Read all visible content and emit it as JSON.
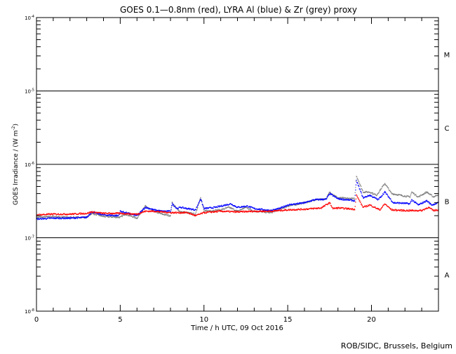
{
  "chart_data": {
    "type": "scatter",
    "title": "GOES 0.1—0.8nm (red), LYRA Al (blue) & Zr (grey) proxy",
    "xlabel": "Time / h UTC, 09 Oct 2016",
    "ylabel": "GOES Irradiance / (W m",
    "ylabel_sup": "-2",
    "ylabel_end": ")",
    "xlim": [
      0,
      24
    ],
    "ylim": [
      1e-08,
      0.0001
    ],
    "yscale": "log",
    "xticks": [
      0,
      5,
      10,
      15,
      20
    ],
    "xtick_labels": [
      "0",
      "5",
      "10",
      "15",
      "20"
    ],
    "yticks": [
      {
        "value": 0.0001,
        "base": "10",
        "exp": "-4"
      },
      {
        "value": 1e-05,
        "base": "10",
        "exp": "-5"
      },
      {
        "value": 1e-06,
        "base": "10",
        "exp": "-6"
      },
      {
        "value": 1e-07,
        "base": "10",
        "exp": "-7"
      },
      {
        "value": 1e-08,
        "base": "10",
        "exp": "-8"
      }
    ],
    "flare_classes": [
      {
        "label": "M",
        "value": 3.16e-05
      },
      {
        "label": "C",
        "value": 3.16e-06
      },
      {
        "label": "B",
        "value": 3.16e-07
      },
      {
        "label": "A",
        "value": 3.16e-08
      }
    ],
    "class_lines": [
      1e-05,
      1e-06,
      1e-07
    ],
    "credit": "ROB/SIDC, Brussels, Belgium",
    "series": [
      {
        "name": "Zr (grey)",
        "color": "#808080",
        "points": [
          [
            0,
            1.9e-07
          ],
          [
            1,
            1.95e-07
          ],
          [
            2,
            1.9e-07
          ],
          [
            3,
            1.9e-07
          ],
          [
            3.3,
            2.15e-07
          ],
          [
            4,
            1.95e-07
          ],
          [
            5,
            1.9e-07
          ],
          [
            5.3,
            2.1e-07
          ],
          [
            6,
            1.85e-07
          ],
          [
            6.5,
            2.7e-07
          ],
          [
            7,
            2.3e-07
          ],
          [
            7.5,
            2.1e-07
          ],
          [
            8,
            2e-07
          ],
          [
            8.1,
            3e-07
          ],
          [
            8.5,
            2.3e-07
          ],
          [
            9,
            2.2e-07
          ],
          [
            9.5,
            2.1e-07
          ],
          [
            9.8,
            3.6e-07
          ],
          [
            10,
            2.3e-07
          ],
          [
            11,
            2.4e-07
          ],
          [
            11.5,
            2.6e-07
          ],
          [
            12,
            2.3e-07
          ],
          [
            12.5,
            2.6e-07
          ],
          [
            13,
            2.3e-07
          ],
          [
            14,
            2.2e-07
          ],
          [
            15,
            2.7e-07
          ],
          [
            16,
            3e-07
          ],
          [
            16.7,
            3.3e-07
          ],
          [
            17.3,
            3.4e-07
          ],
          [
            17.5,
            4.2e-07
          ],
          [
            18,
            3.5e-07
          ],
          [
            19,
            3.4e-07
          ],
          [
            19.1,
            7e-07
          ],
          [
            19.5,
            4.2e-07
          ],
          [
            19.9,
            4.2e-07
          ],
          [
            20.3,
            3.8e-07
          ],
          [
            20.8,
            5.5e-07
          ],
          [
            21.2,
            4e-07
          ],
          [
            22,
            3.7e-07
          ],
          [
            22.3,
            3.6e-07
          ],
          [
            22.4,
            4.2e-07
          ],
          [
            22.8,
            3.6e-07
          ],
          [
            23.3,
            4.2e-07
          ],
          [
            23.7,
            3.6e-07
          ],
          [
            24,
            3.9e-07
          ]
        ]
      },
      {
        "name": "Al (blue)",
        "color": "#0000ff",
        "points": [
          [
            0,
            1.8e-07
          ],
          [
            1,
            1.85e-07
          ],
          [
            2,
            1.85e-07
          ],
          [
            3,
            1.9e-07
          ],
          [
            3.3,
            2.25e-07
          ],
          [
            4,
            2.05e-07
          ],
          [
            4.9,
            2e-07
          ],
          [
            5,
            2.3e-07
          ],
          [
            6,
            2e-07
          ],
          [
            6.5,
            2.6e-07
          ],
          [
            7,
            2.4e-07
          ],
          [
            7.5,
            2.3e-07
          ],
          [
            8,
            2.3e-07
          ],
          [
            8.1,
            2.9e-07
          ],
          [
            8.4,
            2.5e-07
          ],
          [
            8.6,
            2.6e-07
          ],
          [
            9,
            2.5e-07
          ],
          [
            9.5,
            2.4e-07
          ],
          [
            9.8,
            3.4e-07
          ],
          [
            10,
            2.5e-07
          ],
          [
            10.7,
            2.6e-07
          ],
          [
            11.3,
            2.8e-07
          ],
          [
            11.6,
            2.9e-07
          ],
          [
            12,
            2.6e-07
          ],
          [
            12.6,
            2.7e-07
          ],
          [
            13,
            2.5e-07
          ],
          [
            14,
            2.35e-07
          ],
          [
            14.5,
            2.5e-07
          ],
          [
            15,
            2.8e-07
          ],
          [
            16,
            3e-07
          ],
          [
            16.6,
            3.3e-07
          ],
          [
            17.3,
            3.35e-07
          ],
          [
            17.5,
            4e-07
          ],
          [
            18,
            3.4e-07
          ],
          [
            19,
            3.2e-07
          ],
          [
            19.1,
            6e-07
          ],
          [
            19.5,
            3.5e-07
          ],
          [
            19.9,
            3.8e-07
          ],
          [
            20.4,
            3.3e-07
          ],
          [
            20.8,
            4.2e-07
          ],
          [
            21.3,
            3e-07
          ],
          [
            22,
            2.95e-07
          ],
          [
            22.3,
            2.9e-07
          ],
          [
            22.4,
            3.3e-07
          ],
          [
            22.8,
            2.8e-07
          ],
          [
            23.3,
            3.2e-07
          ],
          [
            23.6,
            2.8e-07
          ],
          [
            24,
            3e-07
          ]
        ]
      },
      {
        "name": "GOES (red)",
        "color": "#ff0000",
        "points": [
          [
            0,
            2.05e-07
          ],
          [
            1,
            2.1e-07
          ],
          [
            2,
            2.1e-07
          ],
          [
            3,
            2.15e-07
          ],
          [
            3.3,
            2.25e-07
          ],
          [
            4,
            2.15e-07
          ],
          [
            5,
            2.15e-07
          ],
          [
            6,
            2.1e-07
          ],
          [
            6.5,
            2.3e-07
          ],
          [
            7,
            2.3e-07
          ],
          [
            8,
            2.2e-07
          ],
          [
            9,
            2.2e-07
          ],
          [
            9.5,
            2e-07
          ],
          [
            10,
            2.2e-07
          ],
          [
            11,
            2.3e-07
          ],
          [
            12,
            2.25e-07
          ],
          [
            13,
            2.3e-07
          ],
          [
            14,
            2.3e-07
          ],
          [
            15,
            2.4e-07
          ],
          [
            16,
            2.45e-07
          ],
          [
            17,
            2.55e-07
          ],
          [
            17.5,
            3e-07
          ],
          [
            17.7,
            2.5e-07
          ],
          [
            18,
            2.55e-07
          ],
          [
            19,
            2.45e-07
          ],
          [
            19.1,
            3.8e-07
          ],
          [
            19.5,
            2.6e-07
          ],
          [
            19.9,
            2.8e-07
          ],
          [
            20.5,
            2.4e-07
          ],
          [
            20.8,
            2.9e-07
          ],
          [
            21.2,
            2.4e-07
          ],
          [
            22,
            2.35e-07
          ],
          [
            23,
            2.35e-07
          ],
          [
            23.4,
            2.6e-07
          ],
          [
            23.7,
            2.35e-07
          ],
          [
            24,
            2.4e-07
          ]
        ]
      }
    ]
  }
}
